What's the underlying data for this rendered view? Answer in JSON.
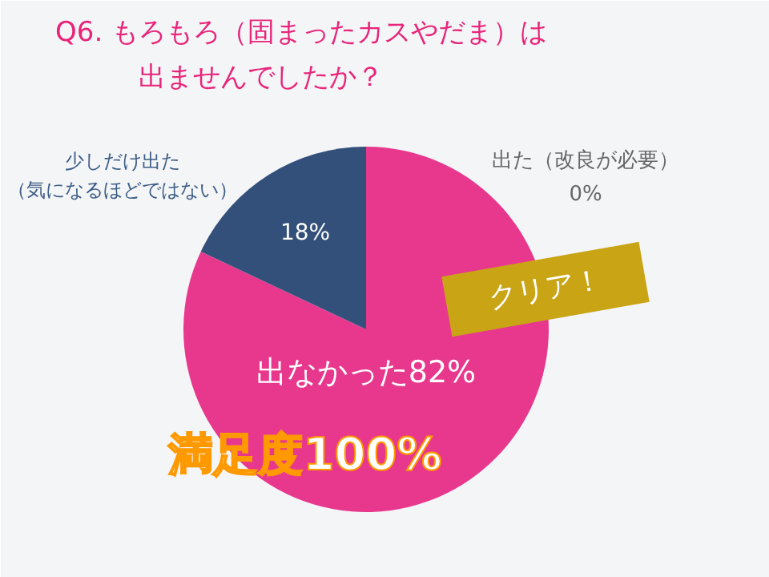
{
  "chart_data": {
    "type": "pie",
    "title": "Q6. もろもろ（固まったカスやだま）は出ませんでしたか？",
    "categories": [
      "出なかった",
      "少しだけ出た（気になるほどではない）",
      "出た（改良が必要）"
    ],
    "values": [
      82,
      18,
      0
    ],
    "colors": [
      "#e8388e",
      "#33507a",
      "#9a9a9a"
    ],
    "value_labels": [
      "82%",
      "18%",
      "0%"
    ],
    "annotations": [
      "クリア！",
      "満足度100%"
    ]
  }
}
